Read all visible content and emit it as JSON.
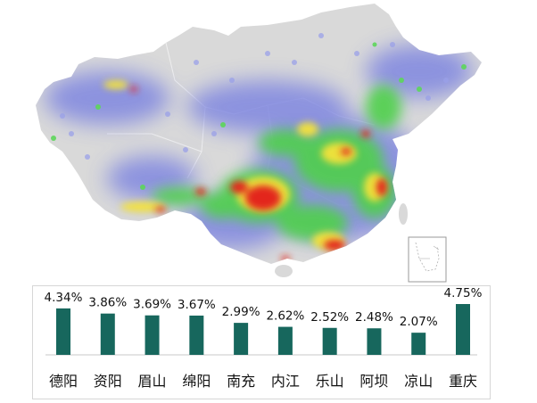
{
  "colors": {
    "bar": "#17675d",
    "land": "#d9d9d9",
    "heat_low": "#7f86e0",
    "heat_mid": "#4fd04b",
    "heat_high": "#f4e23a",
    "heat_peak": "#e3271c"
  },
  "map": {
    "type": "heatmap",
    "inset": "south-china-sea-islands"
  },
  "chart_data": {
    "type": "bar",
    "categories": [
      "德阳",
      "资阳",
      "眉山",
      "绵阳",
      "南充",
      "内江",
      "乐山",
      "阿坝",
      "凉山",
      "重庆"
    ],
    "values": [
      4.34,
      3.86,
      3.69,
      3.67,
      2.99,
      2.62,
      2.52,
      2.48,
      2.07,
      4.75
    ],
    "data_labels": [
      "4.34%",
      "3.86%",
      "3.69%",
      "3.67%",
      "2.99%",
      "2.62%",
      "2.52%",
      "2.48%",
      "2.07%",
      "4.75%"
    ],
    "title": "",
    "xlabel": "",
    "ylabel": "",
    "ylim": [
      0,
      5
    ],
    "grid": false,
    "legend": "none"
  }
}
